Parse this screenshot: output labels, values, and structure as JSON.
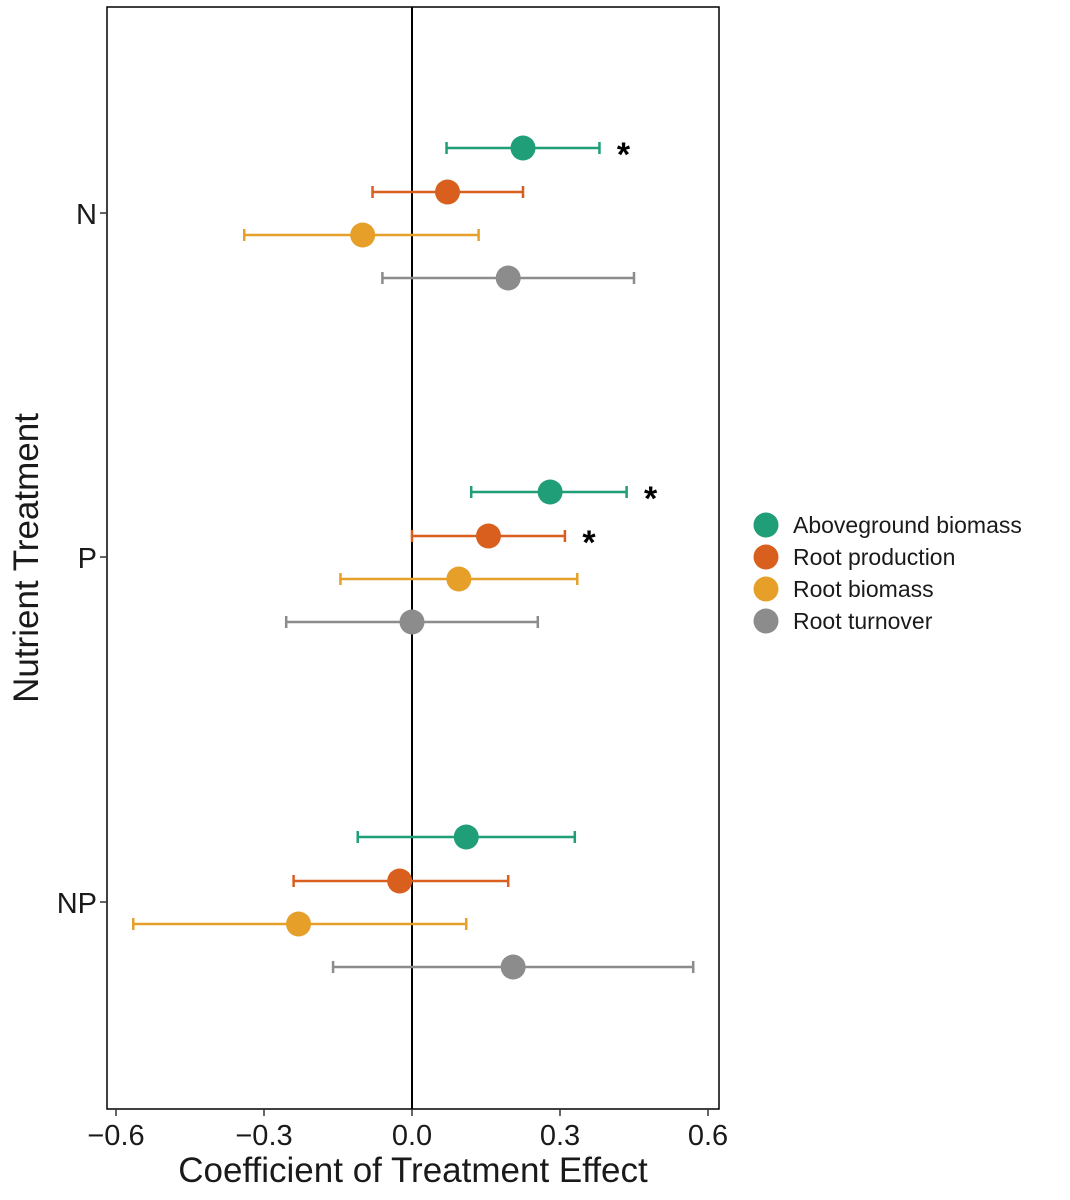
{
  "chart_data": {
    "type": "scatter",
    "subtype": "forest-plot-with-error-bars",
    "title": "",
    "xlabel": "Coefficient of Treatment Effect",
    "ylabel": "Nutrient Treatment",
    "xlim": [
      -0.62,
      0.63
    ],
    "xticks": [
      -0.6,
      -0.3,
      0.0,
      0.3,
      0.6
    ],
    "xtick_labels": [
      "−0.6",
      "−0.3",
      "0.0",
      "0.3",
      "0.6"
    ],
    "reference_line_x": 0,
    "grid": false,
    "legend_position": "right",
    "categories": [
      "N",
      "P",
      "NP"
    ],
    "series": [
      {
        "name": "Aboveground biomass",
        "color": "#1f9e77",
        "estimate": [
          0.225,
          0.28,
          0.11
        ],
        "lower": [
          0.07,
          0.12,
          -0.11
        ],
        "upper": [
          0.38,
          0.435,
          0.33
        ],
        "significance": [
          "*",
          "*",
          ""
        ]
      },
      {
        "name": "Root production",
        "color": "#d95f1f",
        "estimate": [
          0.072,
          0.155,
          -0.025
        ],
        "lower": [
          -0.08,
          0.0,
          -0.24
        ],
        "upper": [
          0.225,
          0.31,
          0.195
        ],
        "significance": [
          "",
          "*",
          ""
        ]
      },
      {
        "name": "Root biomass",
        "color": "#e6a02a",
        "estimate": [
          -0.1,
          0.095,
          -0.23
        ],
        "lower": [
          -0.34,
          -0.145,
          -0.565
        ],
        "upper": [
          0.135,
          0.335,
          0.11
        ],
        "significance": [
          "",
          "",
          ""
        ]
      },
      {
        "name": "Root turnover",
        "color": "#8c8c8c",
        "estimate": [
          0.195,
          0.0,
          0.205
        ],
        "lower": [
          -0.06,
          -0.255,
          -0.16
        ],
        "upper": [
          0.45,
          0.255,
          0.57
        ],
        "significance": [
          "",
          "",
          ""
        ]
      }
    ]
  }
}
